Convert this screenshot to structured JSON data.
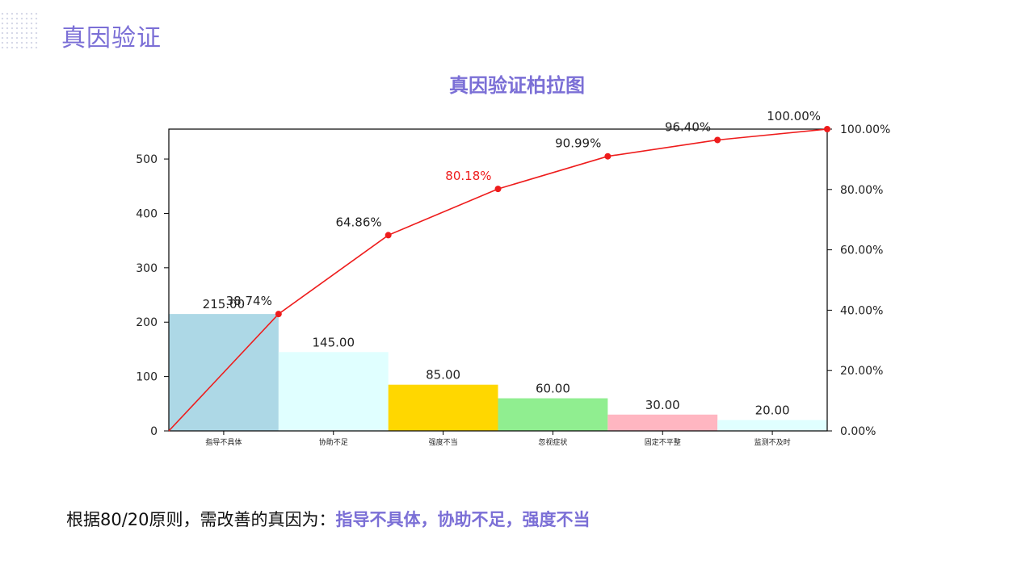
{
  "page": {
    "title": "真因验证"
  },
  "colors": {
    "accent": "#7b6fd6",
    "line": "#ee1c1c"
  },
  "chart_data": {
    "type": "bar",
    "title": "真因验证柏拉图",
    "categories": [
      "指导不具体",
      "协助不足",
      "强度不当",
      "忽视症状",
      "固定不平整",
      "监测不及时"
    ],
    "values": [
      215,
      145,
      85,
      60,
      30,
      20
    ],
    "value_labels": [
      "215.00",
      "145.00",
      "85.00",
      "60.00",
      "30.00",
      "20.00"
    ],
    "bar_colors": [
      "#add8e6",
      "#e0ffff",
      "#ffd700",
      "#90ee90",
      "#ffb6c1",
      "#e0ffff"
    ],
    "cumulative_percent": [
      38.74,
      64.86,
      80.18,
      90.99,
      96.4,
      100.0
    ],
    "cumulative_labels": [
      "38.74%",
      "64.86%",
      "80.18%",
      "90.99%",
      "96.40%",
      "100.00%"
    ],
    "highlight_label_index": 2,
    "ylim": [
      0,
      555
    ],
    "yticks": [
      0,
      100,
      200,
      300,
      400,
      500
    ],
    "y2lim": [
      0,
      100
    ],
    "y2ticks": [
      "0.00%",
      "20.00%",
      "40.00%",
      "60.00%",
      "80.00%",
      "100.00%"
    ],
    "xlabel": "",
    "ylabel": "",
    "grid": false
  },
  "conclusion": {
    "prefix": "根据80/20原则，需改善的真因为：",
    "highlight": "指导不具体，协助不足，强度不当"
  }
}
